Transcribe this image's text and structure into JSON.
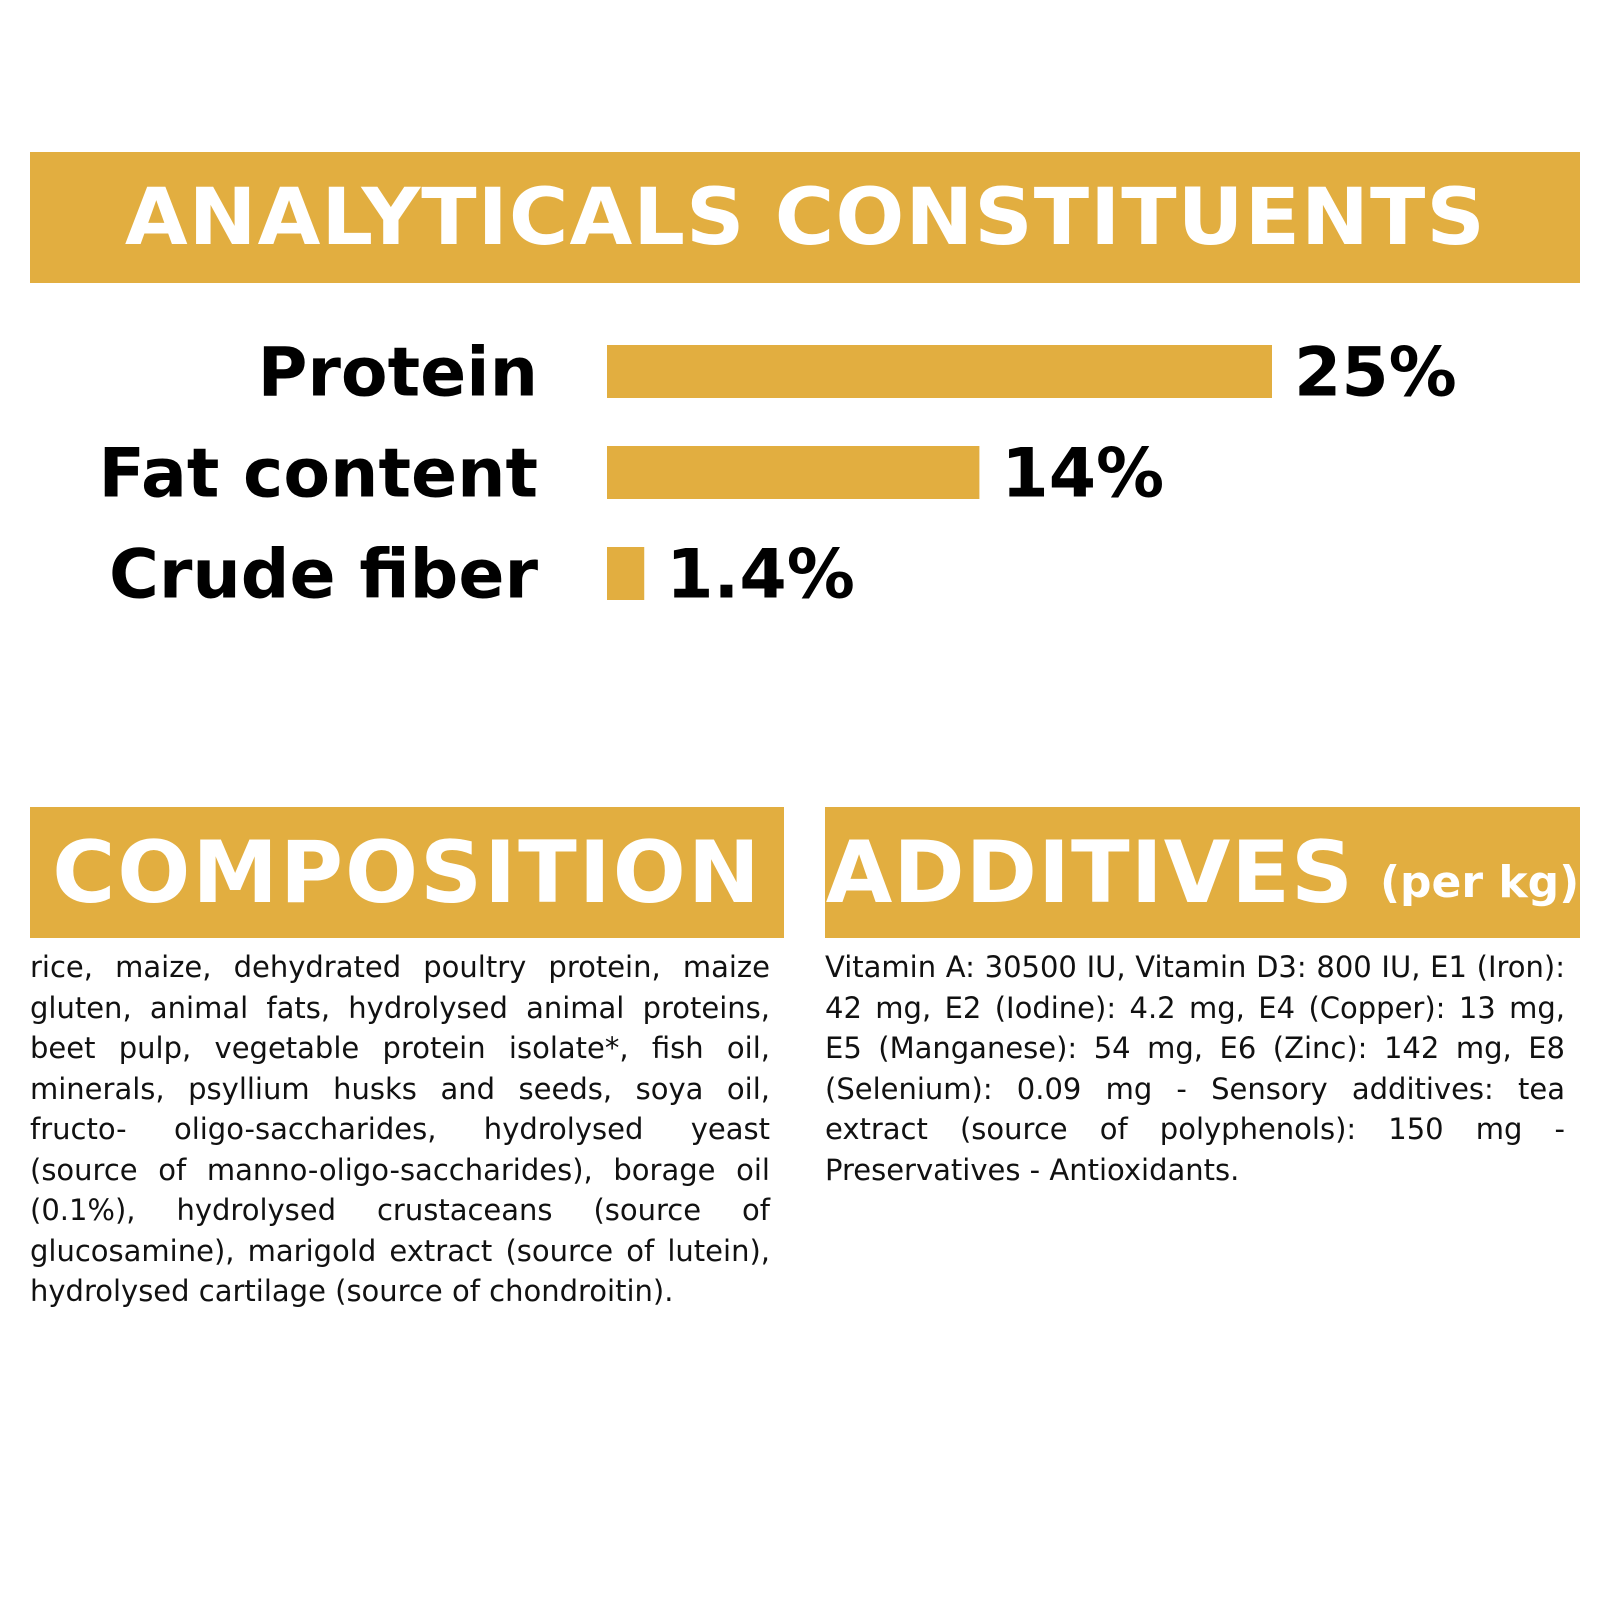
{
  "analytical": {
    "title": "ANALYTICALS CONSTITUENTS"
  },
  "chart_data": {
    "type": "bar",
    "orientation": "horizontal",
    "title": "ANALYTICALS CONSTITUENTS",
    "categories": [
      "Protein",
      "Fat content",
      "Crude fiber"
    ],
    "values": [
      25,
      14,
      1.4
    ],
    "value_labels": [
      "25%",
      "14%",
      "1.4%"
    ],
    "unit": "%",
    "xlim": [
      0,
      25
    ],
    "grid": false,
    "bar_color": "#e2ae40"
  },
  "composition": {
    "title": "COMPOSITION",
    "text": "rice, maize, dehydrated poultry protein, maize gluten, animal fats, hydrolysed animal proteins, beet pulp, vegetable protein isolate*, fish oil, minerals, psyllium husks and seeds, soya oil, fructo- oligo-saccharides, hydrolysed yeast (source of manno-oligo-saccharides), borage oil (0.1%), hydrolysed crustaceans (source of glucosamine), marigold extract (source of lutein), hydrolysed cartilage (source of chondroitin)."
  },
  "additives": {
    "title": "ADDITIVES",
    "subtitle": "(per kg)",
    "text": "Vitamin A: 30500 IU, Vitamin D3: 800 IU, E1 (Iron): 42 mg, E2 (Iodine): 4.2 mg, E4 (Copper): 13 mg, E5 (Manganese): 54 mg, E6 (Zinc): 142 mg, E8 (Selenium): 0.09 mg - Sensory additives: tea extract (source of polyphenols): 150 mg - Preservatives - Antioxidants."
  },
  "colors": {
    "accent": "#e2ae40",
    "banner_text": "#ffffff",
    "text": "#000000"
  }
}
